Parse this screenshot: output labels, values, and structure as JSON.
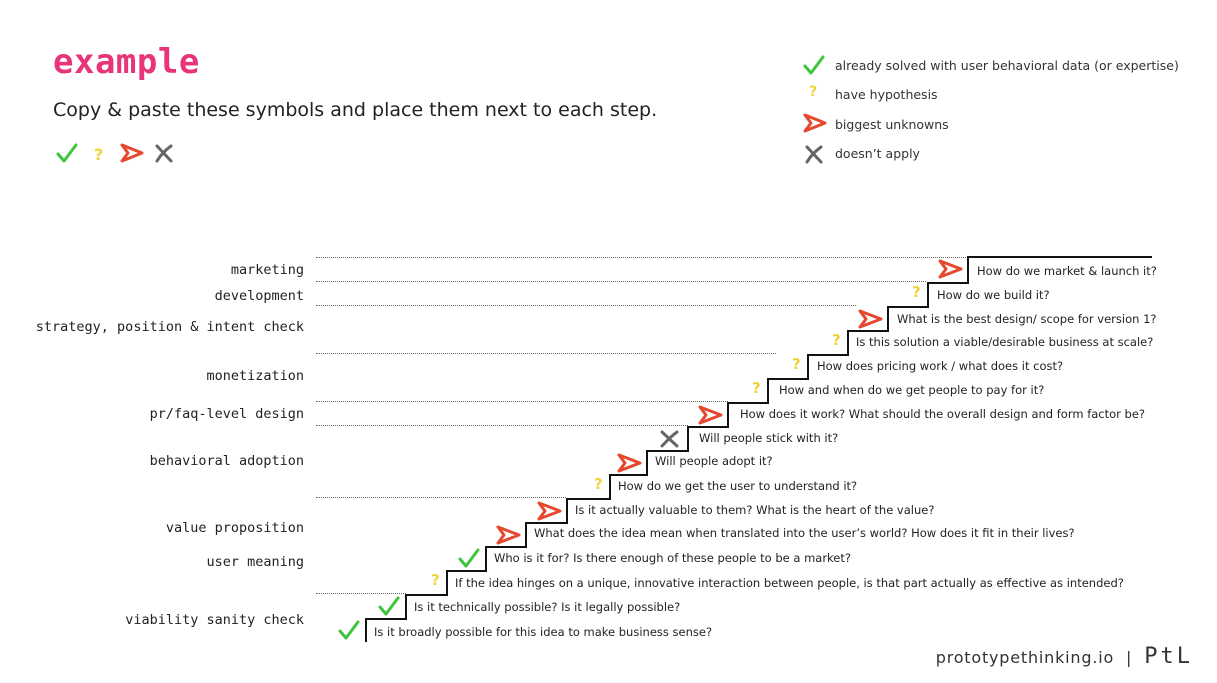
{
  "header": {
    "title": "example",
    "subtitle": "Copy & paste these symbols and place them next to each step."
  },
  "legend": [
    {
      "symbol": "check-icon",
      "text": "already solved with user behavioral data (or expertise)"
    },
    {
      "symbol": "question-icon",
      "text": "have hypothesis"
    },
    {
      "symbol": "arrow-icon",
      "text": "biggest unknowns"
    },
    {
      "symbol": "cross-icon",
      "text": "doesn’t apply"
    }
  ],
  "colors": {
    "title": "#e8357a",
    "check": "#3ec43e",
    "question": "#f2d33c",
    "arrow": "#e5482e",
    "cross": "#666666"
  },
  "categories": [
    "marketing",
    "development",
    "strategy, position & intent check",
    "monetization",
    "pr/faq-level design",
    "behavioral adoption",
    "value proposition",
    "user meaning",
    "viability sanity check"
  ],
  "steps": [
    {
      "symbol": "check-icon",
      "text": "Is it broadly possible for this idea to make business sense?"
    },
    {
      "symbol": "check-icon",
      "text": "Is it technically possible?  Is it legally possible?"
    },
    {
      "symbol": "question-icon",
      "text": "If the idea hinges on a unique, innovative interaction between people, is that part actually as effective as intended?"
    },
    {
      "symbol": "check-icon",
      "text": "Who is it for? Is there enough of these people to be a market?"
    },
    {
      "symbol": "arrow-icon",
      "text": "What does the idea mean when translated into the user’s world? How does it fit in their lives?"
    },
    {
      "symbol": "arrow-icon",
      "text": "Is it actually valuable to them?  What is the heart of the value?"
    },
    {
      "symbol": "question-icon",
      "text": "How do we get the user to understand it?"
    },
    {
      "symbol": "arrow-icon",
      "text": "Will people adopt it?"
    },
    {
      "symbol": "cross-icon",
      "text": "Will people stick with it?"
    },
    {
      "symbol": "arrow-icon",
      "text": "How does it work? What should the overall design and form factor be?"
    },
    {
      "symbol": "question-icon",
      "text": "How and when do we get people to pay for it?"
    },
    {
      "symbol": "question-icon",
      "text": "How does pricing work / what does it cost?"
    },
    {
      "symbol": "question-icon",
      "text": "Is this solution a viable/desirable business at scale?"
    },
    {
      "symbol": "arrow-icon",
      "text": "What is the best design/ scope for version 1?"
    },
    {
      "symbol": "question-icon",
      "text": "How do we build it?"
    },
    {
      "symbol": "arrow-icon",
      "text": "How do we market & launch it?"
    }
  ],
  "footer": {
    "site": "prototypethinking.io",
    "separator": "|",
    "logo": "PtL"
  }
}
